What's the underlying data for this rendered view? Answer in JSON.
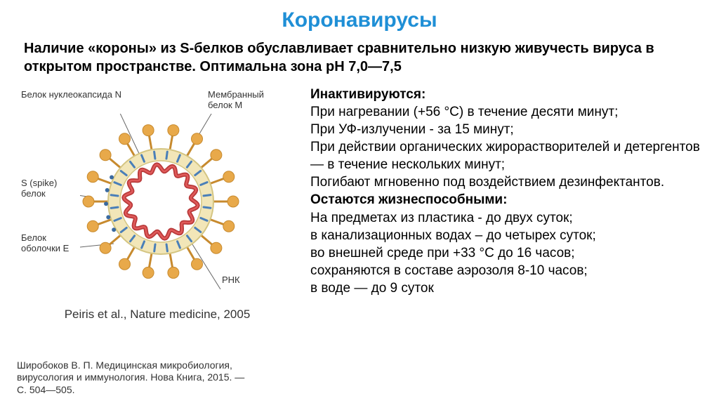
{
  "title": "Коронавирусы",
  "title_color": "#1f8fd6",
  "subtitle": "Наличие «короны» из S-белков обуславливает сравнительно низкую живучесть вируса в открытом пространстве. Оптимальна зона рН 7,0—7,5",
  "diagram": {
    "labels": {
      "nucleocapsid": "Белок нуклеокапсида N",
      "membrane": "Мембранный\nбелок М",
      "spike": "S (spike)\nбелок",
      "envelope": "Белок\nоболочки Е",
      "rna": "РНК"
    },
    "colors": {
      "spike": "#e8a94a",
      "spike_stroke": "#c78a2e",
      "membrane": "#4a7fb8",
      "envelope_outer": "#f2e6b8",
      "envelope_border": "#d4c582",
      "nucleocapsid": "#b83a3a",
      "rna": "#e05a5a",
      "e_protein": "#3a6aa0",
      "background": "#ffffff"
    },
    "radii": {
      "outer": 75,
      "inner": 58
    },
    "spike_count": 18,
    "m_protein_count": 24
  },
  "citation": "Peiris et al., Nature medicine, 2005",
  "right": {
    "inactivated_head": "Инактивируются:",
    "inactivated_lines": [
      "При нагревании (+56 °С) в течение десяти минут;",
      "При УФ-излучении - за 15 минут;",
      "При действии органических жирорастворителей и детергентов — в течение нескольких минут;",
      "Погибают мгновенно под воздействием дезинфектантов."
    ],
    "viable_head": "Остаются жизнеспособными:",
    "viable_lines": [
      "На предметах из пластика - до двух суток;",
      "в канализационных водах – до четырех суток;",
      "во внешней среде при +33 °С до 16 часов;",
      "сохраняются в составе аэрозоля 8-10 часов;",
      "в воде — до 9 суток"
    ]
  },
  "footer_ref": "Широбоков В. П. Медицинская микробиология,\nвирусология и иммунология. Нова Книга, 2015. —\nС. 504—505."
}
